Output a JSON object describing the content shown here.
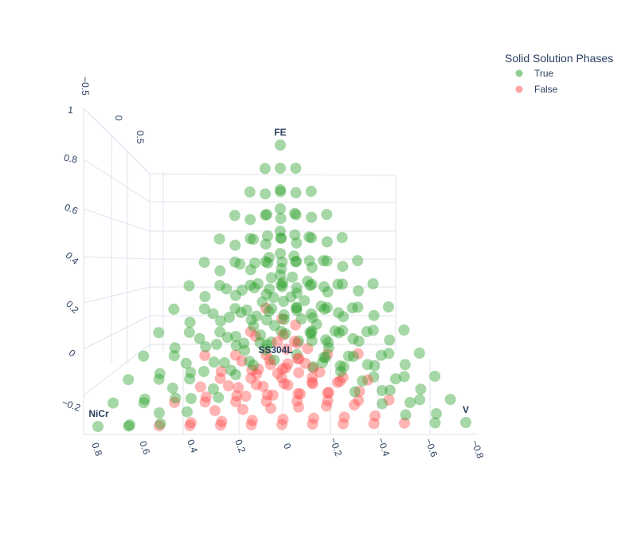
{
  "chart_data": {
    "type": "scatter",
    "legend": {
      "title": "Solid Solution Phases",
      "placement": "top-right",
      "entries": [
        {
          "label": "True",
          "color": "#2ca02c"
        },
        {
          "label": "False",
          "color": "#ff4d4d"
        }
      ]
    },
    "series": [
      {
        "name": "True",
        "color": "#2ca02c"
      },
      {
        "name": "False",
        "color": "#ff4d4d"
      }
    ],
    "vertex_labels": [
      "FE",
      "NiCr",
      "V",
      "SS304L"
    ],
    "axes": {
      "left_ticks": [
        "1",
        "0.8",
        "0.6",
        "0.4",
        "0.2",
        "0",
        "−0.2"
      ],
      "top_ticks": [
        "−0.5",
        "0",
        "0.5"
      ],
      "bottom_ticks": [
        "0.8",
        "0.6",
        "0.4",
        "0.2",
        "0",
        "−0.2",
        "−0.4",
        "−0.6",
        "−0.8"
      ]
    },
    "marker_opacity": 0.42,
    "grid": true
  }
}
